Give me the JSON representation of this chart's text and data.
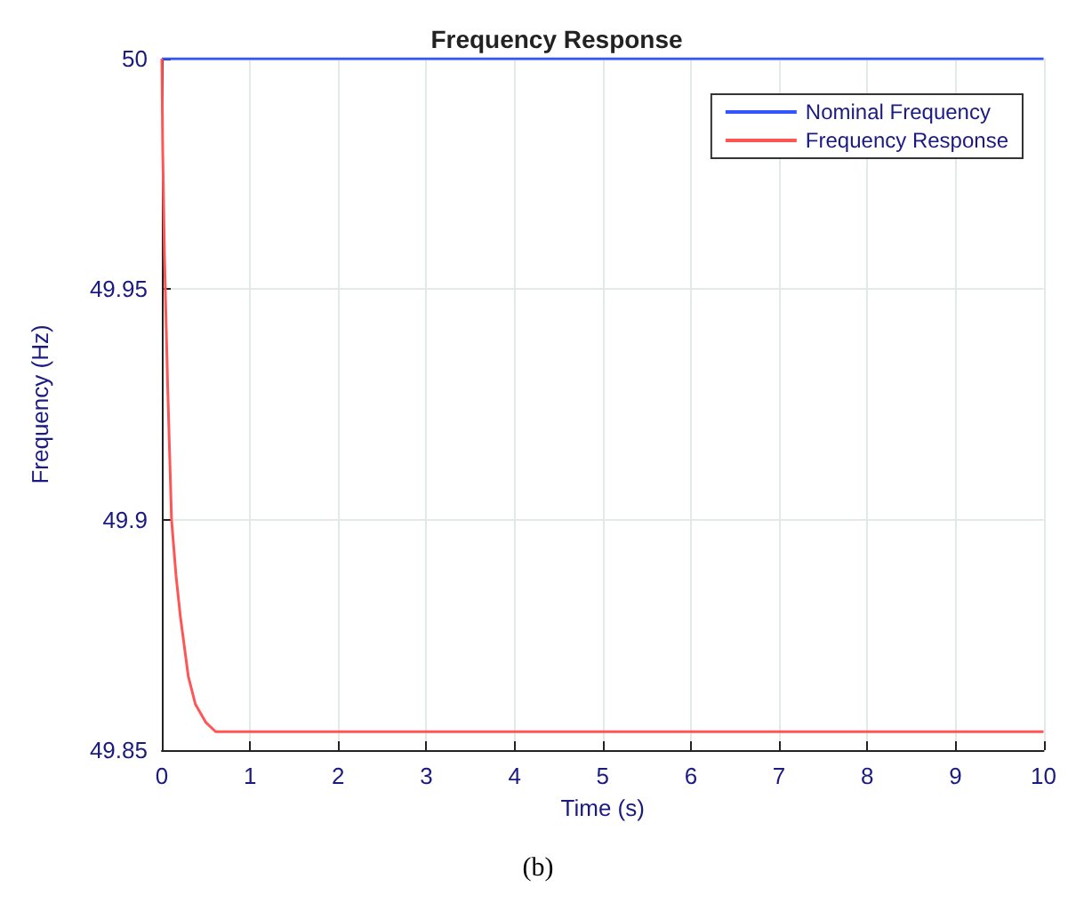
{
  "chart_data": {
    "type": "line",
    "title": "Frequency Response",
    "xlabel": "Time (s)",
    "ylabel": "Frequency (Hz)",
    "xlim": [
      0,
      10
    ],
    "xticks": [
      0,
      1,
      2,
      3,
      4,
      5,
      6,
      7,
      8,
      9,
      10
    ],
    "ylim": [
      49.85,
      50
    ],
    "yticks": [
      49.85,
      49.9,
      49.95,
      50
    ],
    "grid": true,
    "legend": "top right",
    "annotations": [
      "(b)"
    ],
    "series": [
      {
        "name": "Nominal Frequency",
        "color": "#3355ff",
        "x": [
          0,
          10
        ],
        "values": [
          50,
          50
        ]
      },
      {
        "name": "Frequency Response",
        "color": "#ff5555",
        "x": [
          0,
          0.01,
          0.03,
          0.066,
          0.11,
          0.16,
          0.21,
          0.3,
          0.38,
          0.5,
          0.61,
          1,
          10
        ],
        "values": [
          50,
          49.98,
          49.957,
          49.929,
          49.9,
          49.888,
          49.879,
          49.866,
          49.86,
          49.856,
          49.854,
          49.854,
          49.854
        ]
      }
    ]
  }
}
